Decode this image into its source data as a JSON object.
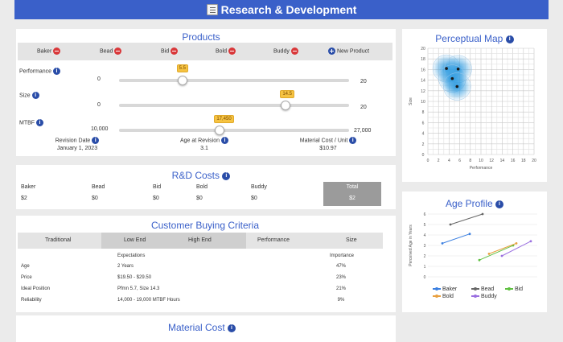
{
  "header": {
    "title": "Research & Development"
  },
  "products": {
    "title": "Products",
    "row_labels": {
      "baker": "Baker",
      "performance": "Performance",
      "size": "Size",
      "mtbf": "MTBF"
    },
    "columns": [
      "Bead",
      "Bid",
      "Bold",
      "Buddy"
    ],
    "new_product": "New Product",
    "performance_slider": {
      "min": "0",
      "max": "20",
      "value": 5.5,
      "value_label": "5.5"
    },
    "size_slider": {
      "min": "0",
      "max": "20",
      "value": 14.5,
      "value_label": "14.5"
    },
    "mtbf_slider": {
      "min": "10,000",
      "max": "27,000",
      "value": 17450,
      "value_label": "17,450"
    },
    "revision_date_label": "Revision Date",
    "revision_date_value": "January 1, 2023",
    "age_label": "Age at Revision",
    "age_value": "3.1",
    "material_cost_label": "Material Cost / Unit",
    "material_cost_value": "$10.97"
  },
  "rd_costs": {
    "title": "R&D Costs",
    "columns": [
      "Baker",
      "Bead",
      "Bid",
      "Bold",
      "Buddy",
      "Total"
    ],
    "values": [
      "$2",
      "$0",
      "$0",
      "$0",
      "$0",
      "$2"
    ]
  },
  "criteria": {
    "title": "Customer Buying Criteria",
    "headers": {
      "traditional": "Traditional",
      "low": "Low End",
      "high": "High End",
      "performance": "Performance",
      "size": "Size"
    },
    "expectations_label": "Expectations",
    "importance_label": "Importance",
    "rows": [
      {
        "label": "Age",
        "expectation": "2 Years",
        "importance": "47%"
      },
      {
        "label": "Price",
        "expectation": "$19.50 - $29.50",
        "importance": "23%"
      },
      {
        "label": "Ideal Position",
        "expectation": "Pfmn 5.7, Size 14.3",
        "importance": "21%"
      },
      {
        "label": "Reliability",
        "expectation": "14,000 - 19,000 MTBF Hours",
        "importance": "9%"
      }
    ]
  },
  "material_cost": {
    "title": "Material Cost"
  },
  "perceptual_map": {
    "title": "Perceptual Map",
    "xlabel": "Performance",
    "ylabel": "Size",
    "x_ticks": [
      "0",
      "2",
      "4",
      "6",
      "8",
      "10",
      "12",
      "14",
      "16",
      "18",
      "20"
    ],
    "y_ticks": [
      "20",
      "18",
      "16",
      "14",
      "12",
      "10",
      "8",
      "6",
      "4",
      "2",
      "0"
    ],
    "points": [
      {
        "x": 3.5,
        "y": 16.2
      },
      {
        "x": 5.7,
        "y": 16.1
      },
      {
        "x": 4.6,
        "y": 14.3
      },
      {
        "x": 5.5,
        "y": 12.8
      }
    ],
    "glow_color": "#2e9be0"
  },
  "age_profile": {
    "title": "Age Profile",
    "ylabel": "Perceived Age in Years",
    "y_ticks": [
      "6",
      "5",
      "4",
      "3",
      "2",
      "1",
      "0"
    ],
    "legend": [
      "Baker",
      "Bead",
      "Bid",
      "Bold",
      "Buddy"
    ],
    "colors": {
      "baker": "#3b7fe0",
      "bead": "#666666",
      "bid": "#5ec040",
      "bold": "#e8a040",
      "buddy": "#9a6fe0"
    }
  }
}
